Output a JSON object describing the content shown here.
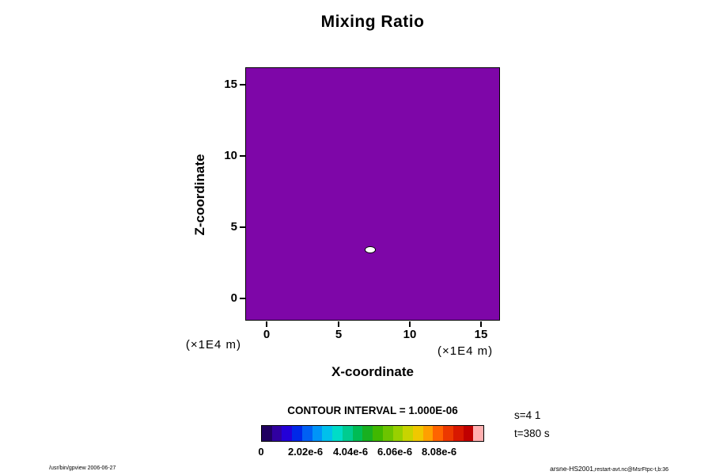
{
  "title": "Mixing Ratio",
  "plot": {
    "xlabel": "X-coordinate",
    "ylabel": "Z-coordinate",
    "x_unit": "(×1E4 m)",
    "y_unit": "(×1E4 m)",
    "x_ticks": [
      "0",
      "5",
      "10",
      "15"
    ],
    "y_ticks": [
      "0",
      "5",
      "10",
      "15"
    ],
    "background_color": "#7e06a8",
    "feature": {
      "x": 7.2,
      "z": 3.5,
      "description": "small white contour ellipse with black outline"
    }
  },
  "contour": {
    "interval_label": "CONTOUR INTERVAL = 1.000E-06",
    "colorbar_ticks": [
      "0",
      "2.02e-6",
      "4.04e-6",
      "6.06e-6",
      "8.08e-6"
    ],
    "colorbar_colors": [
      "#200060",
      "#3000a0",
      "#2400d8",
      "#0028e8",
      "#0060f4",
      "#0094f8",
      "#00c0ec",
      "#00dcc8",
      "#00cc90",
      "#00bc54",
      "#18b020",
      "#40b800",
      "#6cc400",
      "#98d000",
      "#c8d400",
      "#f0c800",
      "#ffa000",
      "#ff6400",
      "#ec3800",
      "#d81800",
      "#c00000",
      "#ffb0b0"
    ]
  },
  "annotations": {
    "s": "s=4 1",
    "t": "t=380 s"
  },
  "footer": {
    "left": "/usr/bin/gpview 2006-06-27",
    "right_main": "arsne-HS2001",
    "right_sub": ",restart-avt.nc@MsrFtpc-t,b:36"
  },
  "chart_data": {
    "type": "heatmap",
    "title": "Mixing Ratio",
    "xlabel": "X-coordinate",
    "ylabel": "Z-coordinate",
    "x_unit_scale": "×1E4 m",
    "y_unit_scale": "×1E4 m",
    "x_ticks": [
      0,
      5,
      10,
      15
    ],
    "y_ticks": [
      0,
      5,
      10,
      15
    ],
    "xlim": [
      -1.5,
      16.3
    ],
    "ylim": [
      -1.5,
      16.2
    ],
    "contour_interval": 1e-06,
    "colorbar_ticks": [
      0,
      2.02e-06,
      4.04e-06,
      6.06e-06,
      8.08e-06
    ],
    "colorbar_range": [
      0,
      1.01e-05
    ],
    "field_description": "Uniform background at minimum value (rendered solid purple) with one small localized maximum",
    "features": [
      {
        "x": 7.2,
        "z": 3.5,
        "peak_value": 1e-05,
        "shape": "small ellipse, white core with black contour ring"
      }
    ],
    "annotations": [
      "s=4 1",
      "t=380 s"
    ],
    "legend_position": "bottom colorbar",
    "grid": false
  }
}
